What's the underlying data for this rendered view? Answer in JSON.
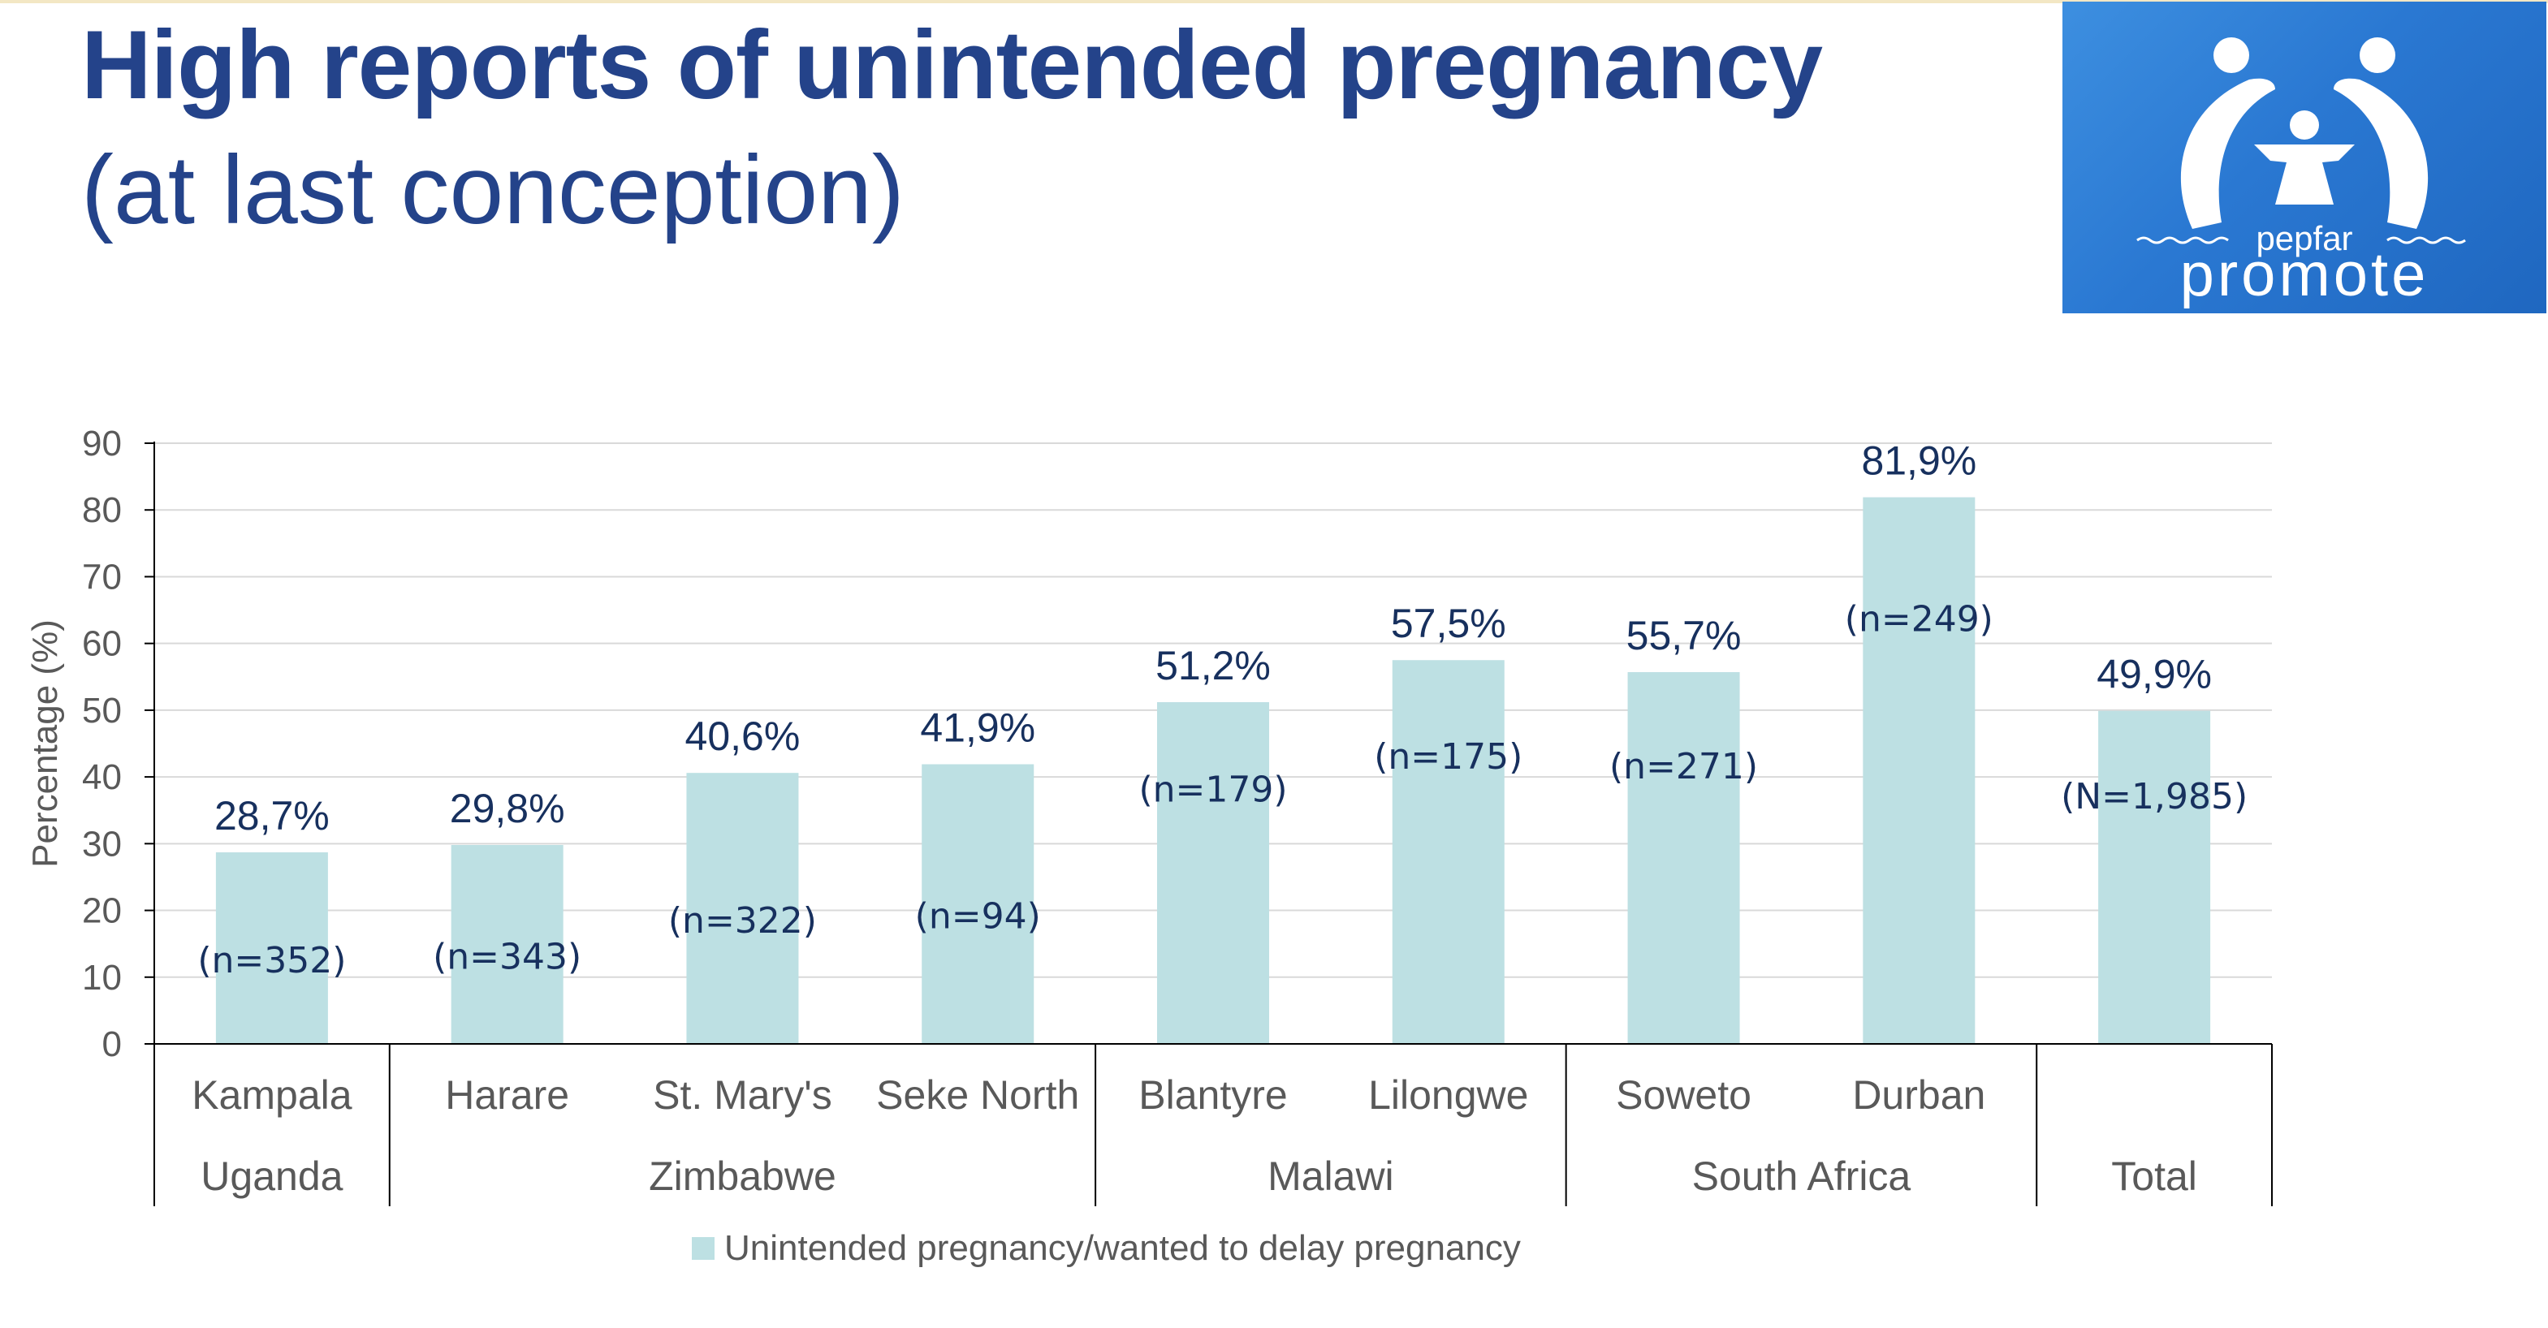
{
  "title": {
    "main": "High reports of unintended pregnancy",
    "sub": "(at last conception)"
  },
  "logo": {
    "small": "pepfar",
    "large": "promote"
  },
  "colors": {
    "title": "#24438a",
    "bar": "#bde0e3",
    "label": "#17305e",
    "axis_text": "#595959",
    "grid": "#d9d9d9"
  },
  "chart_data": {
    "type": "bar",
    "ylabel": "Percentage (%)",
    "ylim": [
      0,
      90
    ],
    "yticks": [
      0,
      10,
      20,
      30,
      40,
      50,
      60,
      70,
      80,
      90
    ],
    "grid": true,
    "legend_position": "bottom",
    "categories": [
      "Kampala",
      "Harare",
      "St. Mary's",
      "Seke North",
      "Blantyre",
      "Lilongwe",
      "Soweto",
      "Durban",
      ""
    ],
    "groups": [
      {
        "label": "Uganda",
        "span": 1
      },
      {
        "label": "Zimbabwe",
        "span": 3
      },
      {
        "label": "Malawi",
        "span": 2
      },
      {
        "label": "South Africa",
        "span": 2
      },
      {
        "label": "Total",
        "span": 1
      }
    ],
    "series": [
      {
        "name": "Unintended pregnancy/wanted to delay pregnancy",
        "values": [
          28.7,
          29.8,
          40.6,
          41.9,
          51.2,
          57.5,
          55.7,
          81.9,
          49.9
        ],
        "value_labels": [
          "28,7%",
          "29,8%",
          "40,6%",
          "41,9%",
          "51,2%",
          "57,5%",
          "55,7%",
          "81,9%",
          "49,9%"
        ],
        "n_labels": [
          "(n=352)",
          "(n=343)",
          "(n=322)",
          "(n=94)",
          "(n=179)",
          "(n=175)",
          "(n=271)",
          "(n=249)",
          "(N=1,985)"
        ]
      }
    ]
  }
}
